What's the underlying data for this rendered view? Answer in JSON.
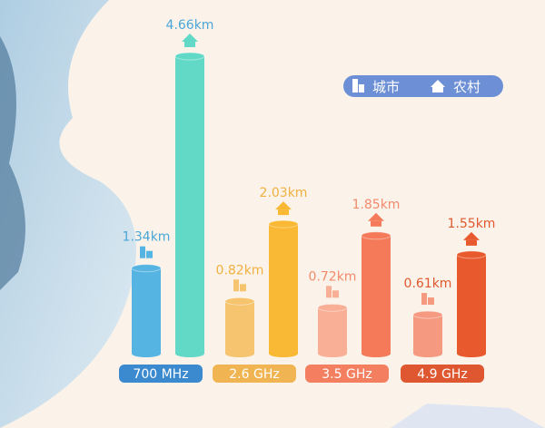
{
  "chart_data": {
    "type": "bar",
    "categories": [
      "700 MHz",
      "2.6 GHz",
      "3.5 GHz",
      "4.9 GHz"
    ],
    "series": [
      {
        "name": "城市",
        "icon": "city-buildings-icon",
        "values": [
          1.34,
          0.82,
          0.72,
          0.61
        ],
        "labels": [
          "1.34km",
          "0.82km",
          "0.72km",
          "0.61km"
        ]
      },
      {
        "name": "农村",
        "icon": "rural-house-icon",
        "values": [
          4.66,
          2.03,
          1.85,
          1.55
        ],
        "labels": [
          "4.66km",
          "2.03km",
          "1.85km",
          "1.55km"
        ]
      }
    ],
    "unit": "km",
    "legend": "top-right",
    "grid": false,
    "colors": {
      "city": [
        "#56b4e3",
        "#f6c46e",
        "#f9ae96",
        "#f59a80"
      ],
      "rural": [
        "#62d8c6",
        "#f9b934",
        "#f47a5a",
        "#e8592e"
      ],
      "category_label_bg": [
        "#3b89cf",
        "#f0b552",
        "#f37f60",
        "#df5730"
      ],
      "value_text": [
        "#4aa6d8",
        "#f0b040",
        "#f28a6c",
        "#e0582e"
      ],
      "legend_bg": "#6c8fd6"
    }
  }
}
